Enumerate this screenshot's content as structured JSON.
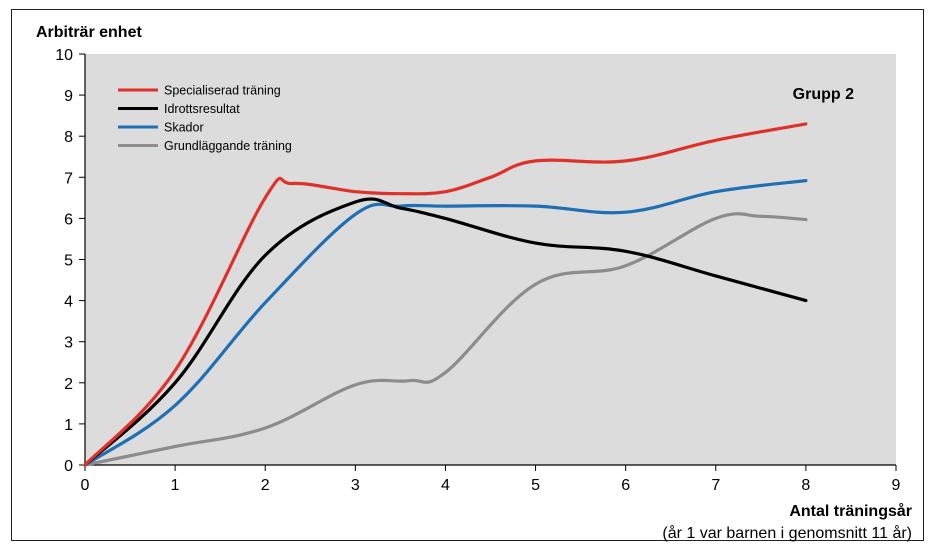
{
  "chart_data": {
    "type": "line",
    "ylabel": "Arbiträr enhet",
    "xlabel": "Antal träningsår",
    "xnote": "(år 1 var barnen i genomsnitt 11 år)",
    "group_label": "Grupp 2",
    "xlim": [
      0,
      9
    ],
    "ylim": [
      0,
      10
    ],
    "xticks": [
      "0",
      "1",
      "2",
      "3",
      "4",
      "5",
      "6",
      "7",
      "8",
      "9"
    ],
    "yticks": [
      "0",
      "1",
      "2",
      "3",
      "4",
      "5",
      "6",
      "7",
      "8",
      "9",
      "10"
    ],
    "grid": false,
    "legend_position": "top-left",
    "plot_background": "#dcdcdc",
    "series": [
      {
        "name": "Specialiserad träning",
        "color": "#e0302a",
        "points": [
          [
            0,
            0
          ],
          [
            1,
            2.3
          ],
          [
            2,
            6.5
          ],
          [
            2.3,
            6.85
          ],
          [
            3,
            6.65
          ],
          [
            3.5,
            6.6
          ],
          [
            4,
            6.65
          ],
          [
            4.5,
            7.0
          ],
          [
            5,
            7.4
          ],
          [
            6,
            7.4
          ],
          [
            7,
            7.9
          ],
          [
            8,
            8.3
          ]
        ]
      },
      {
        "name": "Idrottsresultat",
        "color": "#000000",
        "points": [
          [
            0,
            0
          ],
          [
            1,
            2.0
          ],
          [
            2,
            5.1
          ],
          [
            3,
            6.4
          ],
          [
            3.5,
            6.25
          ],
          [
            4,
            6.0
          ],
          [
            5,
            5.4
          ],
          [
            6,
            5.2
          ],
          [
            7,
            4.6
          ],
          [
            8,
            4.0
          ]
        ]
      },
      {
        "name": "Skador",
        "color": "#1f6fb4",
        "points": [
          [
            0,
            0
          ],
          [
            1,
            1.45
          ],
          [
            2,
            3.95
          ],
          [
            3,
            6.1
          ],
          [
            3.5,
            6.3
          ],
          [
            4,
            6.3
          ],
          [
            5,
            6.3
          ],
          [
            6,
            6.15
          ],
          [
            7,
            6.65
          ],
          [
            8,
            6.92
          ]
        ]
      },
      {
        "name": "Grundläggande träning",
        "color": "#8c8c8c",
        "points": [
          [
            0,
            0
          ],
          [
            1,
            0.45
          ],
          [
            2,
            0.9
          ],
          [
            3,
            1.95
          ],
          [
            3.6,
            2.05
          ],
          [
            4,
            2.25
          ],
          [
            5,
            4.4
          ],
          [
            6,
            4.85
          ],
          [
            7,
            6.0
          ],
          [
            7.5,
            6.05
          ],
          [
            8,
            5.97
          ]
        ]
      }
    ]
  }
}
